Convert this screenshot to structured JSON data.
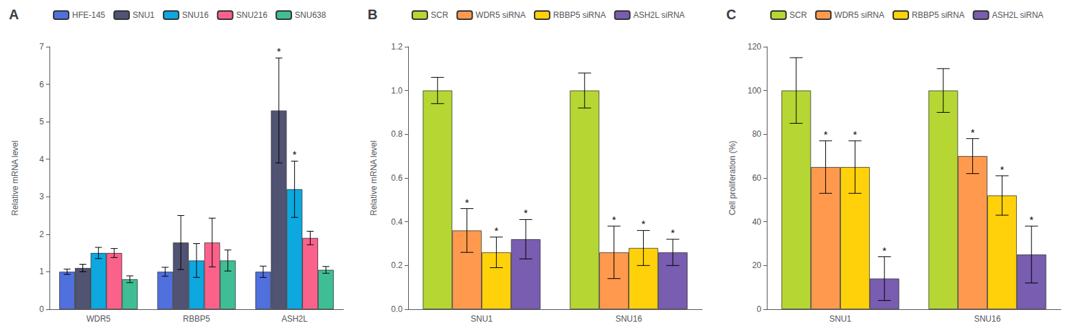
{
  "chart_data": [
    {
      "type": "bar",
      "title": "A",
      "ylabel": "Relative mRNA level",
      "categories": [
        "WDR5",
        "RBBP5",
        "ASH2L"
      ],
      "series": [
        {
          "name": "HFE-145",
          "values": [
            1.0,
            1.0,
            1.0
          ],
          "errors": [
            0.07,
            0.12,
            0.15
          ]
        },
        {
          "name": "SNU1",
          "values": [
            1.1,
            1.78,
            5.3
          ],
          "errors": [
            0.1,
            0.72,
            1.4
          ],
          "annotations": [
            null,
            null,
            "*"
          ]
        },
        {
          "name": "SNU16",
          "values": [
            1.5,
            1.3,
            3.2
          ],
          "errors": [
            0.15,
            0.45,
            0.75
          ],
          "annotations": [
            null,
            null,
            "*"
          ]
        },
        {
          "name": "SNU216",
          "values": [
            1.5,
            1.78,
            1.9
          ],
          "errors": [
            0.12,
            0.65,
            0.18
          ]
        },
        {
          "name": "SNU638",
          "values": [
            0.8,
            1.3,
            1.05
          ],
          "errors": [
            0.09,
            0.28,
            0.09
          ]
        }
      ],
      "ylim": [
        0,
        7
      ],
      "yticks": [
        0,
        1,
        2,
        3,
        4,
        5,
        6,
        7
      ],
      "legend": "upper left",
      "grid": false
    },
    {
      "type": "bar",
      "title": "B",
      "ylabel": "Relative mRNA level",
      "categories": [
        "SNU1",
        "SNU16"
      ],
      "series": [
        {
          "name": "SCR",
          "values": [
            1.0,
            1.0
          ],
          "errors": [
            0.06,
            0.08
          ]
        },
        {
          "name": "WDR5 siRNA",
          "values": [
            0.36,
            0.26
          ],
          "errors": [
            0.1,
            0.12
          ],
          "annotations": [
            "*",
            "*"
          ]
        },
        {
          "name": "RBBP5 siRNA",
          "values": [
            0.26,
            0.28
          ],
          "errors": [
            0.07,
            0.08
          ],
          "annotations": [
            "*",
            "*"
          ]
        },
        {
          "name": "ASH2L siRNA",
          "values": [
            0.32,
            0.26
          ],
          "errors": [
            0.09,
            0.06
          ],
          "annotations": [
            "*",
            "*"
          ]
        }
      ],
      "ylim": [
        0,
        1.2
      ],
      "yticks": [
        {
          "value": 0,
          "label": "0.0"
        },
        0.2,
        0.4,
        0.6,
        0.8,
        {
          "value": 1,
          "label": "1.0"
        },
        1.2
      ],
      "legend": "upper left",
      "grid": false
    },
    {
      "type": "bar",
      "title": "C",
      "ylabel": "Cell proliferation (%)",
      "categories": [
        "SNU1",
        "SNU16"
      ],
      "series": [
        {
          "name": "SCR",
          "values": [
            100,
            100
          ],
          "errors": [
            15,
            10
          ]
        },
        {
          "name": "WDR5 siRNA",
          "values": [
            65,
            70
          ],
          "errors": [
            12,
            8
          ],
          "annotations": [
            "*",
            "*"
          ]
        },
        {
          "name": "RBBP5 siRNA",
          "values": [
            65,
            52
          ],
          "errors": [
            12,
            9
          ],
          "annotations": [
            "*",
            "*"
          ]
        },
        {
          "name": "ASH2L siRNA",
          "values": [
            14,
            25
          ],
          "errors": [
            10,
            13
          ],
          "annotations": [
            "*",
            "*"
          ]
        }
      ],
      "ylim": [
        0,
        120
      ],
      "yticks": [
        0,
        20,
        40,
        60,
        80,
        100,
        120
      ],
      "legend": "upper left",
      "grid": false
    }
  ]
}
